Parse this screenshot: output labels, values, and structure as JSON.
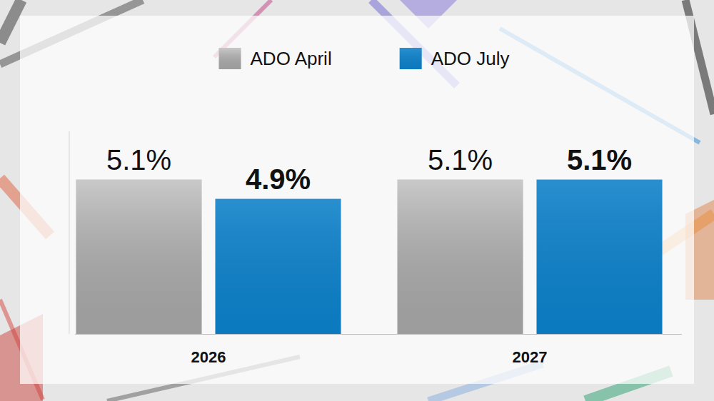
{
  "chart_data": {
    "type": "bar",
    "categories": [
      "2026",
      "2027"
    ],
    "series": [
      {
        "name": "ADO April",
        "color": "#b1b2b1",
        "values": [
          5.1,
          5.1
        ],
        "value_labels": [
          "5.1%",
          "5.1%"
        ]
      },
      {
        "name": "ADO July",
        "color": "#0c80c9",
        "values": [
          4.9,
          5.1
        ],
        "value_labels": [
          "4.9%",
          "5.1%"
        ]
      }
    ],
    "ylim": [
      3.5,
      5.6
    ],
    "tick_labels": "x",
    "data_labels": true,
    "legend": "top",
    "grid": false
  }
}
